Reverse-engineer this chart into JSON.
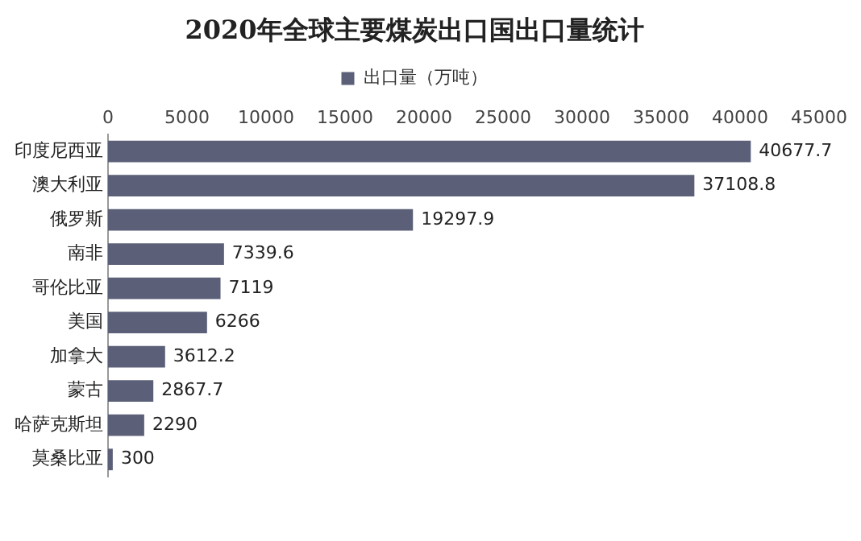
{
  "chart_data": {
    "type": "bar",
    "orientation": "horizontal",
    "title": "2020年全球主要煤炭出口国出口量统计",
    "categories": [
      "印度尼西亚",
      "澳大利亚",
      "俄罗斯",
      "南非",
      "哥伦比亚",
      "美国",
      "加拿大",
      "蒙古",
      "哈萨克斯坦",
      "莫桑比亚"
    ],
    "series": [
      {
        "name": "出口量（万吨）",
        "color": "#5b6078",
        "values": [
          40677.7,
          37108.8,
          19297.9,
          7339.6,
          7119,
          6266,
          3612.2,
          2867.7,
          2290,
          300
        ]
      }
    ],
    "xlim": [
      0,
      45000
    ],
    "xticks": [
      0,
      5000,
      10000,
      15000,
      20000,
      25000,
      30000,
      35000,
      40000,
      45000
    ],
    "grid": false,
    "legend": "top",
    "data_labels": true
  }
}
